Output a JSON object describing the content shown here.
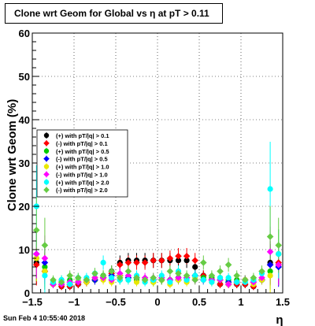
{
  "chart_data": {
    "type": "scatter",
    "title": "Clone wrt Geom for Global vs   η at pT > 0.11",
    "xlabel": "η",
    "ylabel": "Clone wrt Geom (%)",
    "xlim": [
      -1.5,
      1.5
    ],
    "ylim": [
      0,
      60
    ],
    "x_ticks": [
      "−1.5",
      "−1",
      "−0.5",
      "0",
      "0.5",
      "1",
      "1.5"
    ],
    "y_ticks": [
      "0",
      "10",
      "20",
      "30",
      "40",
      "50",
      "60"
    ],
    "grid": true,
    "legend_position": "left-middle",
    "series": [
      {
        "name": "(+) with pT/|q| > 0.1",
        "color": "#000000",
        "x": [
          -1.45,
          -1.35,
          -1.25,
          -1.15,
          -1.05,
          -0.95,
          -0.85,
          -0.75,
          -0.65,
          -0.55,
          -0.45,
          -0.35,
          -0.25,
          -0.15,
          -0.05,
          0.05,
          0.15,
          0.25,
          0.35,
          0.45,
          0.55,
          0.65,
          0.75,
          0.85,
          0.95,
          1.05,
          1.15,
          1.25,
          1.35,
          1.45
        ],
        "y": [
          7,
          5,
          2,
          1.5,
          1.5,
          2,
          2.5,
          3,
          3.5,
          5,
          7,
          7.5,
          7.5,
          7.5,
          7.5,
          7.5,
          7.5,
          7.5,
          7.5,
          6,
          4,
          3,
          2,
          2,
          2,
          2,
          1.5,
          3,
          7,
          6.5
        ]
      },
      {
        "name": "(-) with pT/|q| > 0.1",
        "color": "#ff0000",
        "x": [
          -1.45,
          -1.35,
          -1.25,
          -1.15,
          -1.05,
          -0.95,
          -0.85,
          -0.75,
          -0.65,
          -0.55,
          -0.45,
          -0.35,
          -0.25,
          -0.15,
          -0.05,
          0.05,
          0.15,
          0.25,
          0.35,
          0.45,
          0.55,
          0.65,
          0.75,
          0.85,
          0.95,
          1.05,
          1.15,
          1.25,
          1.35,
          1.45
        ],
        "y": [
          6.5,
          5,
          2,
          1.5,
          1.5,
          2,
          2.5,
          3,
          3.5,
          4.5,
          6.5,
          7,
          7,
          7,
          7.5,
          7.5,
          8,
          8.5,
          8.5,
          7.5,
          4,
          3,
          2,
          2,
          2,
          2,
          1.5,
          3,
          6.5,
          7
        ]
      },
      {
        "name": "(+) with pT/|q| > 0.5",
        "color": "#00cc00",
        "x": [
          -1.45,
          -1.35,
          -1.25,
          -1.15,
          -1.05,
          -0.95,
          -0.85,
          -0.75,
          -0.65,
          -0.55,
          -0.45,
          -0.35,
          -0.25,
          -0.15,
          -0.05,
          0.05,
          0.15,
          0.25,
          0.35,
          0.45,
          0.55,
          0.65,
          0.75,
          0.85,
          0.95,
          1.05,
          1.15,
          1.25,
          1.35,
          1.45
        ],
        "y": [
          8,
          6,
          2.5,
          3,
          3,
          2.5,
          3,
          3,
          4,
          3,
          3,
          3.5,
          3,
          3,
          2.5,
          3,
          3,
          3.5,
          3,
          4,
          3.5,
          3.5,
          3.5,
          3,
          3,
          3,
          3,
          3,
          5,
          9
        ]
      },
      {
        "name": "(-) with pT/|q| > 0.5",
        "color": "#0000ff",
        "x": [
          -1.45,
          -1.35,
          -1.25,
          -1.15,
          -1.05,
          -0.95,
          -0.85,
          -0.75,
          -0.65,
          -0.55,
          -0.45,
          -0.35,
          -0.25,
          -0.15,
          -0.05,
          0.05,
          0.15,
          0.25,
          0.35,
          0.45,
          0.55,
          0.65,
          0.75,
          0.85,
          0.95,
          1.05,
          1.15,
          1.25,
          1.35,
          1.45
        ],
        "y": [
          9,
          7,
          2,
          2,
          2,
          2.5,
          3,
          3,
          3.5,
          4,
          4,
          3.5,
          3.5,
          3,
          3,
          3,
          3,
          3,
          3.5,
          4,
          3,
          3,
          3,
          2.5,
          2.5,
          3,
          2.5,
          3,
          6.5,
          6
        ]
      },
      {
        "name": "(+) with pT/|q| > 1.0",
        "color": "#e8e800",
        "x": [
          -1.45,
          -1.35,
          -1.25,
          -1.15,
          -1.05,
          -0.95,
          -0.85,
          -0.75,
          -0.65,
          -0.55,
          -0.45,
          -0.35,
          -0.25,
          -0.15,
          -0.05,
          0.05,
          0.15,
          0.25,
          0.35,
          0.45,
          0.55,
          0.65,
          0.75,
          0.85,
          0.95,
          1.05,
          1.15,
          1.25,
          1.35,
          1.45
        ],
        "y": [
          8,
          5,
          2,
          2.5,
          2,
          3,
          2.5,
          3.5,
          3,
          2.5,
          4,
          3,
          2.5,
          3,
          2.5,
          3,
          2,
          3,
          2.5,
          3.5,
          3,
          2.5,
          3,
          2,
          2.5,
          3,
          2,
          3,
          4,
          9
        ]
      },
      {
        "name": "(-) with pT/|q| > 1.0",
        "color": "#ff00ff",
        "x": [
          -1.45,
          -1.35,
          -1.25,
          -1.15,
          -1.05,
          -0.95,
          -0.85,
          -0.75,
          -0.65,
          -0.55,
          -0.45,
          -0.35,
          -0.25,
          -0.15,
          -0.05,
          0.05,
          0.15,
          0.25,
          0.35,
          0.45,
          0.55,
          0.65,
          0.75,
          0.85,
          0.95,
          1.05,
          1.15,
          1.25,
          1.35,
          1.45
        ],
        "y": [
          9,
          8,
          2,
          2,
          2.5,
          2.5,
          3,
          3.5,
          3.5,
          3,
          4.5,
          4,
          3.5,
          3.5,
          3.5,
          3.5,
          3,
          3.5,
          3.5,
          3,
          3,
          3,
          3,
          2,
          2.5,
          3,
          2.5,
          3.5,
          9.5,
          6.5
        ]
      },
      {
        "name": "(+) with pT/|q| > 2.0",
        "color": "#00ffff",
        "x": [
          -1.45,
          -1.35,
          -1.25,
          -1.15,
          -1.05,
          -0.95,
          -0.85,
          -0.75,
          -0.65,
          -0.55,
          -0.45,
          -0.35,
          -0.25,
          -0.15,
          -0.05,
          0.05,
          0.15,
          0.25,
          0.35,
          0.45,
          0.55,
          0.65,
          0.75,
          0.85,
          0.95,
          1.05,
          1.15,
          1.25,
          1.35,
          1.45
        ],
        "y": [
          20,
          4,
          2.5,
          3,
          2,
          3.5,
          3.5,
          4.5,
          7,
          3.5,
          3,
          3,
          4,
          2.5,
          3,
          4,
          2.5,
          5,
          3,
          4,
          3,
          2.5,
          3.5,
          3.5,
          2.5,
          2.5,
          3,
          4.5,
          24,
          9
        ]
      },
      {
        "name": "(-) with pT/|q| > 2.0",
        "color": "#66cc44",
        "x": [
          -1.45,
          -1.35,
          -1.25,
          -1.15,
          -1.05,
          -0.95,
          -0.85,
          -0.75,
          -0.65,
          -0.55,
          -0.45,
          -0.35,
          -0.25,
          -0.15,
          -0.05,
          0.05,
          0.15,
          0.25,
          0.35,
          0.45,
          0.55,
          0.65,
          0.75,
          0.85,
          0.95,
          1.05,
          1.15,
          1.25,
          1.35,
          1.45
        ],
        "y": [
          14.5,
          11,
          3,
          2.5,
          4,
          3.5,
          3,
          4.5,
          4,
          5,
          3.5,
          5,
          3.5,
          3,
          3.5,
          3,
          5,
          4.5,
          4,
          3,
          7,
          4,
          5,
          6.5,
          4,
          3,
          3.5,
          5,
          13,
          11
        ]
      }
    ]
  },
  "footer": {
    "timestamp": "Sun Feb  4 10:55:40 2018"
  }
}
